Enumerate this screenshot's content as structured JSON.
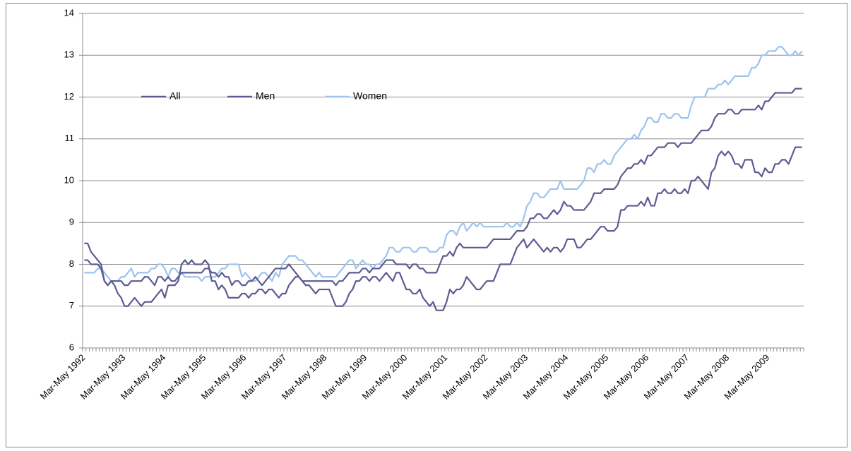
{
  "chart_data": {
    "type": "line",
    "categories": [
      "Mar-May 1992",
      null,
      null,
      null,
      null,
      null,
      null,
      null,
      null,
      null,
      null,
      null,
      "Mar-May 1993",
      null,
      null,
      null,
      null,
      null,
      null,
      null,
      null,
      null,
      null,
      null,
      "Mar-May 1994",
      null,
      null,
      null,
      null,
      null,
      null,
      null,
      null,
      null,
      null,
      null,
      "Mar-May 1995",
      null,
      null,
      null,
      null,
      null,
      null,
      null,
      null,
      null,
      null,
      null,
      "Mar-May 1996",
      null,
      null,
      null,
      null,
      null,
      null,
      null,
      null,
      null,
      null,
      null,
      "Mar-May 1997",
      null,
      null,
      null,
      null,
      null,
      null,
      null,
      null,
      null,
      null,
      null,
      "Mar-May 1998",
      null,
      null,
      null,
      null,
      null,
      null,
      null,
      null,
      null,
      null,
      null,
      "Mar-May 1999",
      null,
      null,
      null,
      null,
      null,
      null,
      null,
      null,
      null,
      null,
      null,
      "Mar-May 2000",
      null,
      null,
      null,
      null,
      null,
      null,
      null,
      null,
      null,
      null,
      null,
      "Mar-May 2001",
      null,
      null,
      null,
      null,
      null,
      null,
      null,
      null,
      null,
      null,
      null,
      "Mar-May 2002",
      null,
      null,
      null,
      null,
      null,
      null,
      null,
      null,
      null,
      null,
      null,
      "Mar-May 2003",
      null,
      null,
      null,
      null,
      null,
      null,
      null,
      null,
      null,
      null,
      null,
      "Mar-May 2004",
      null,
      null,
      null,
      null,
      null,
      null,
      null,
      null,
      null,
      null,
      null,
      "Mar-May 2005",
      null,
      null,
      null,
      null,
      null,
      null,
      null,
      null,
      null,
      null,
      null,
      "Mar-May 2006",
      null,
      null,
      null,
      null,
      null,
      null,
      null,
      null,
      null,
      null,
      null,
      "Mar-May 2007",
      null,
      null,
      null,
      null,
      null,
      null,
      null,
      null,
      null,
      null,
      null,
      "Mar-May 2008",
      null,
      null,
      null,
      null,
      null,
      null,
      null,
      null,
      null,
      null,
      null,
      "Mar-May 2009",
      null,
      null,
      null,
      null,
      null,
      null,
      null,
      null,
      null,
      null
    ],
    "series": [
      {
        "name": "All",
        "color": "#5d5b93",
        "values": [
          8.1,
          8.1,
          8.0,
          8.0,
          8.0,
          7.9,
          7.6,
          7.5,
          7.6,
          7.6,
          7.6,
          7.6,
          7.5,
          7.5,
          7.6,
          7.6,
          7.6,
          7.6,
          7.7,
          7.7,
          7.6,
          7.5,
          7.7,
          7.7,
          7.6,
          7.7,
          7.6,
          7.6,
          7.7,
          7.8,
          7.8,
          7.8,
          7.8,
          7.8,
          7.8,
          7.8,
          7.9,
          7.9,
          7.8,
          7.8,
          7.7,
          7.8,
          7.7,
          7.7,
          7.5,
          7.6,
          7.6,
          7.5,
          7.5,
          7.6,
          7.6,
          7.7,
          7.6,
          7.5,
          7.6,
          7.7,
          7.8,
          7.9,
          7.9,
          7.9,
          7.9,
          8.0,
          7.9,
          7.8,
          7.7,
          7.6,
          7.6,
          7.6,
          7.6,
          7.6,
          7.6,
          7.6,
          7.6,
          7.6,
          7.6,
          7.5,
          7.6,
          7.6,
          7.7,
          7.8,
          7.8,
          7.8,
          7.8,
          7.9,
          7.9,
          7.8,
          7.9,
          7.9,
          7.9,
          8.0,
          8.1,
          8.1,
          8.1,
          8.0,
          8.0,
          8.0,
          8.0,
          7.9,
          8.0,
          8.0,
          7.9,
          7.9,
          7.8,
          7.8,
          7.8,
          7.8,
          8.0,
          8.2,
          8.2,
          8.3,
          8.2,
          8.4,
          8.5,
          8.4,
          8.4,
          8.4,
          8.4,
          8.4,
          8.4,
          8.4,
          8.4,
          8.5,
          8.6,
          8.6,
          8.6,
          8.6,
          8.6,
          8.6,
          8.7,
          8.8,
          8.8,
          8.8,
          8.9,
          9.1,
          9.1,
          9.2,
          9.2,
          9.1,
          9.1,
          9.2,
          9.3,
          9.2,
          9.3,
          9.5,
          9.4,
          9.4,
          9.3,
          9.3,
          9.3,
          9.3,
          9.4,
          9.5,
          9.7,
          9.7,
          9.7,
          9.8,
          9.8,
          9.8,
          9.8,
          9.9,
          10.1,
          10.2,
          10.3,
          10.3,
          10.4,
          10.4,
          10.5,
          10.4,
          10.6,
          10.6,
          10.7,
          10.8,
          10.8,
          10.8,
          10.9,
          10.9,
          10.9,
          10.8,
          10.9,
          10.9,
          10.9,
          10.9,
          11.0,
          11.1,
          11.2,
          11.2,
          11.2,
          11.3,
          11.5,
          11.6,
          11.6,
          11.6,
          11.7,
          11.7,
          11.6,
          11.6,
          11.7,
          11.7,
          11.7,
          11.7,
          11.7,
          11.8,
          11.7,
          11.9,
          11.9,
          12.0,
          12.1,
          12.1,
          12.1,
          12.1,
          12.1,
          12.1,
          12.2,
          12.2,
          12.2
        ]
      },
      {
        "name": "Men",
        "color": "#5d5b93",
        "values": [
          8.5,
          8.5,
          8.3,
          8.2,
          8.1,
          8.0,
          7.6,
          7.5,
          7.6,
          7.5,
          7.3,
          7.2,
          7.0,
          7.0,
          7.1,
          7.2,
          7.1,
          7.0,
          7.1,
          7.1,
          7.1,
          7.2,
          7.3,
          7.4,
          7.2,
          7.5,
          7.5,
          7.5,
          7.6,
          8.0,
          8.1,
          8.0,
          8.1,
          8.0,
          8.0,
          8.0,
          8.1,
          8.0,
          7.6,
          7.6,
          7.4,
          7.5,
          7.4,
          7.2,
          7.2,
          7.2,
          7.2,
          7.3,
          7.3,
          7.2,
          7.3,
          7.3,
          7.4,
          7.4,
          7.3,
          7.4,
          7.4,
          7.3,
          7.2,
          7.3,
          7.3,
          7.5,
          7.6,
          7.7,
          7.7,
          7.6,
          7.5,
          7.5,
          7.4,
          7.3,
          7.4,
          7.4,
          7.4,
          7.4,
          7.2,
          7.0,
          7.0,
          7.0,
          7.1,
          7.3,
          7.4,
          7.6,
          7.6,
          7.7,
          7.7,
          7.6,
          7.7,
          7.7,
          7.6,
          7.7,
          7.8,
          7.7,
          7.6,
          7.8,
          7.8,
          7.6,
          7.4,
          7.4,
          7.3,
          7.3,
          7.4,
          7.2,
          7.1,
          7.0,
          7.1,
          6.9,
          6.9,
          6.9,
          7.1,
          7.4,
          7.3,
          7.4,
          7.4,
          7.5,
          7.7,
          7.6,
          7.5,
          7.4,
          7.4,
          7.5,
          7.6,
          7.6,
          7.6,
          7.8,
          8.0,
          8.0,
          8.0,
          8.0,
          8.2,
          8.4,
          8.5,
          8.6,
          8.4,
          8.5,
          8.6,
          8.5,
          8.4,
          8.3,
          8.4,
          8.3,
          8.4,
          8.4,
          8.3,
          8.4,
          8.6,
          8.6,
          8.6,
          8.4,
          8.4,
          8.5,
          8.6,
          8.6,
          8.7,
          8.8,
          8.9,
          8.9,
          8.8,
          8.8,
          8.8,
          8.9,
          9.3,
          9.3,
          9.4,
          9.4,
          9.4,
          9.4,
          9.5,
          9.4,
          9.6,
          9.4,
          9.4,
          9.7,
          9.7,
          9.8,
          9.7,
          9.7,
          9.8,
          9.7,
          9.7,
          9.8,
          9.7,
          10.0,
          10.0,
          10.1,
          10.0,
          9.9,
          9.8,
          10.2,
          10.3,
          10.6,
          10.7,
          10.6,
          10.7,
          10.6,
          10.4,
          10.4,
          10.3,
          10.5,
          10.5,
          10.5,
          10.2,
          10.2,
          10.1,
          10.3,
          10.2,
          10.2,
          10.4,
          10.4,
          10.5,
          10.5,
          10.4,
          10.6,
          10.8,
          10.8,
          10.8
        ]
      },
      {
        "name": "Women",
        "color": "#9dc3ee",
        "values": [
          7.8,
          7.8,
          7.8,
          7.8,
          7.9,
          7.9,
          7.8,
          7.7,
          7.6,
          7.6,
          7.6,
          7.7,
          7.7,
          7.8,
          7.9,
          7.7,
          7.8,
          7.8,
          7.8,
          7.8,
          7.9,
          7.9,
          8.0,
          8.0,
          7.9,
          7.7,
          7.9,
          7.9,
          7.8,
          7.8,
          7.7,
          7.7,
          7.7,
          7.7,
          7.7,
          7.6,
          7.7,
          7.7,
          7.7,
          7.7,
          7.8,
          7.9,
          7.9,
          8.0,
          8.0,
          8.0,
          8.0,
          7.7,
          7.8,
          7.7,
          7.6,
          7.6,
          7.7,
          7.8,
          7.8,
          7.7,
          7.6,
          7.8,
          7.7,
          8.0,
          8.1,
          8.2,
          8.2,
          8.2,
          8.1,
          8.1,
          8.0,
          7.9,
          7.8,
          7.7,
          7.8,
          7.7,
          7.7,
          7.7,
          7.7,
          7.7,
          7.8,
          7.9,
          8.0,
          8.1,
          8.1,
          7.9,
          8.0,
          8.1,
          8.0,
          8.0,
          7.9,
          8.0,
          8.0,
          8.1,
          8.2,
          8.4,
          8.4,
          8.3,
          8.3,
          8.4,
          8.4,
          8.4,
          8.3,
          8.3,
          8.4,
          8.4,
          8.4,
          8.3,
          8.3,
          8.3,
          8.4,
          8.4,
          8.7,
          8.8,
          8.8,
          8.7,
          8.9,
          9.0,
          8.8,
          8.9,
          9.0,
          8.9,
          9.0,
          8.9,
          8.9,
          8.9,
          8.9,
          8.9,
          8.9,
          8.9,
          9.0,
          8.9,
          8.9,
          9.0,
          8.9,
          9.1,
          9.4,
          9.5,
          9.7,
          9.7,
          9.6,
          9.6,
          9.7,
          9.8,
          9.8,
          9.8,
          10.0,
          9.8,
          9.8,
          9.8,
          9.8,
          9.8,
          9.9,
          10.0,
          10.3,
          10.3,
          10.2,
          10.4,
          10.4,
          10.5,
          10.4,
          10.4,
          10.6,
          10.7,
          10.8,
          10.9,
          11.0,
          11.0,
          11.1,
          11.0,
          11.2,
          11.3,
          11.5,
          11.5,
          11.4,
          11.4,
          11.6,
          11.6,
          11.5,
          11.5,
          11.6,
          11.6,
          11.5,
          11.5,
          11.5,
          11.8,
          12.0,
          12.0,
          12.0,
          12.0,
          12.2,
          12.2,
          12.2,
          12.3,
          12.3,
          12.4,
          12.3,
          12.4,
          12.5,
          12.5,
          12.5,
          12.5,
          12.5,
          12.7,
          12.7,
          12.8,
          13.0,
          13.0,
          13.1,
          13.1,
          13.1,
          13.2,
          13.2,
          13.1,
          13.0,
          13.0,
          13.1,
          13.0,
          13.1
        ]
      }
    ],
    "ylim": [
      6,
      14
    ],
    "yticks": [
      6,
      7,
      8,
      9,
      10,
      11,
      12,
      13,
      14
    ],
    "grid": true,
    "legend": "upper left"
  }
}
